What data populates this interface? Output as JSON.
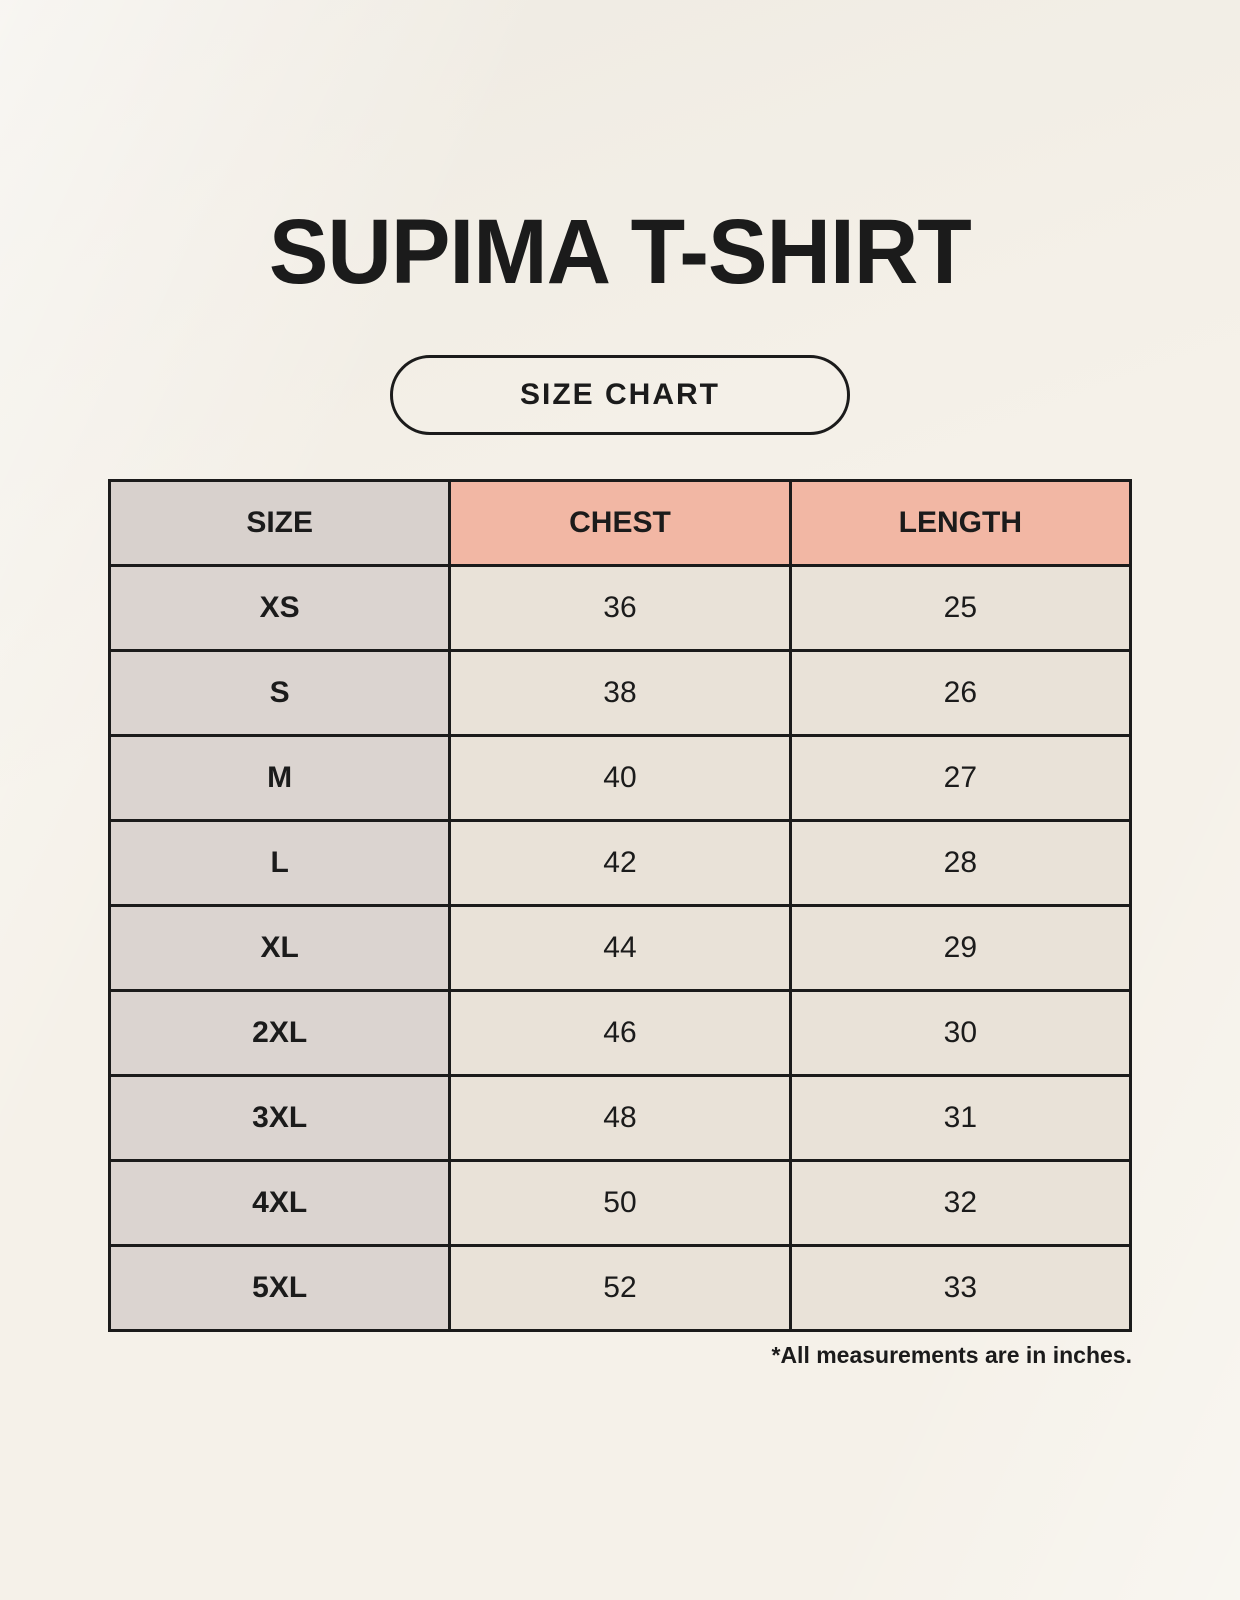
{
  "page": {
    "title": "SUPIMA T-SHIRT",
    "badge": "SIZE CHART",
    "footnote": "*All measurements are in inches."
  },
  "colors": {
    "background": "#f5f1e9",
    "border": "#1b1b1b",
    "text": "#1b1b1b",
    "header_size_bg": "#d8d1cd",
    "header_measure_bg": "#f2b7a4",
    "size_column_bg": "#dbd4d0",
    "value_cell_bg": "#e9e2d8"
  },
  "chart_data": {
    "type": "table",
    "title": "SUPIMA T-SHIRT",
    "subtitle": "SIZE CHART",
    "units": "inches",
    "columns": [
      "SIZE",
      "CHEST",
      "LENGTH"
    ],
    "rows": [
      {
        "size": "XS",
        "chest": 36,
        "length": 25
      },
      {
        "size": "S",
        "chest": 38,
        "length": 26
      },
      {
        "size": "M",
        "chest": 40,
        "length": 27
      },
      {
        "size": "L",
        "chest": 42,
        "length": 28
      },
      {
        "size": "XL",
        "chest": 44,
        "length": 29
      },
      {
        "size": "2XL",
        "chest": 46,
        "length": 30
      },
      {
        "size": "3XL",
        "chest": 48,
        "length": 31
      },
      {
        "size": "4XL",
        "chest": 50,
        "length": 32
      },
      {
        "size": "5XL",
        "chest": 52,
        "length": 33
      }
    ],
    "note": "*All measurements are in inches."
  }
}
